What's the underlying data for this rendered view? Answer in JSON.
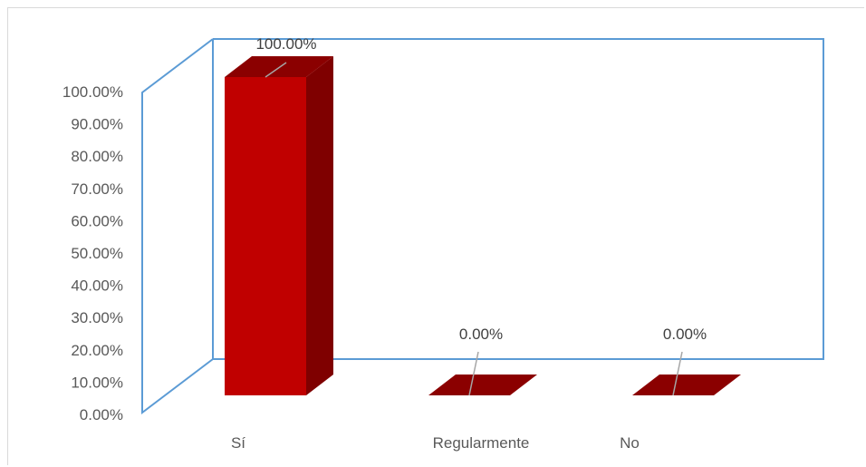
{
  "chart_data": {
    "type": "bar",
    "style": "3d-column",
    "categories": [
      "Sí",
      "Regularmente",
      "No"
    ],
    "values": [
      100.0,
      0.0,
      0.0
    ],
    "data_labels": [
      "100.00%",
      "0.00%",
      "0.00%"
    ],
    "y_ticks": [
      "0.00%",
      "10.00%",
      "20.00%",
      "30.00%",
      "40.00%",
      "50.00%",
      "60.00%",
      "70.00%",
      "80.00%",
      "90.00%",
      "100.00%"
    ],
    "ylim": [
      0,
      100
    ],
    "grid": false,
    "legend": "none",
    "colors": {
      "bar_front": "#c00000",
      "bar_side": "#7f0000",
      "bar_top": "#8b0000",
      "wall": "#5b9bd5",
      "leader": "#a6a6a6"
    }
  }
}
